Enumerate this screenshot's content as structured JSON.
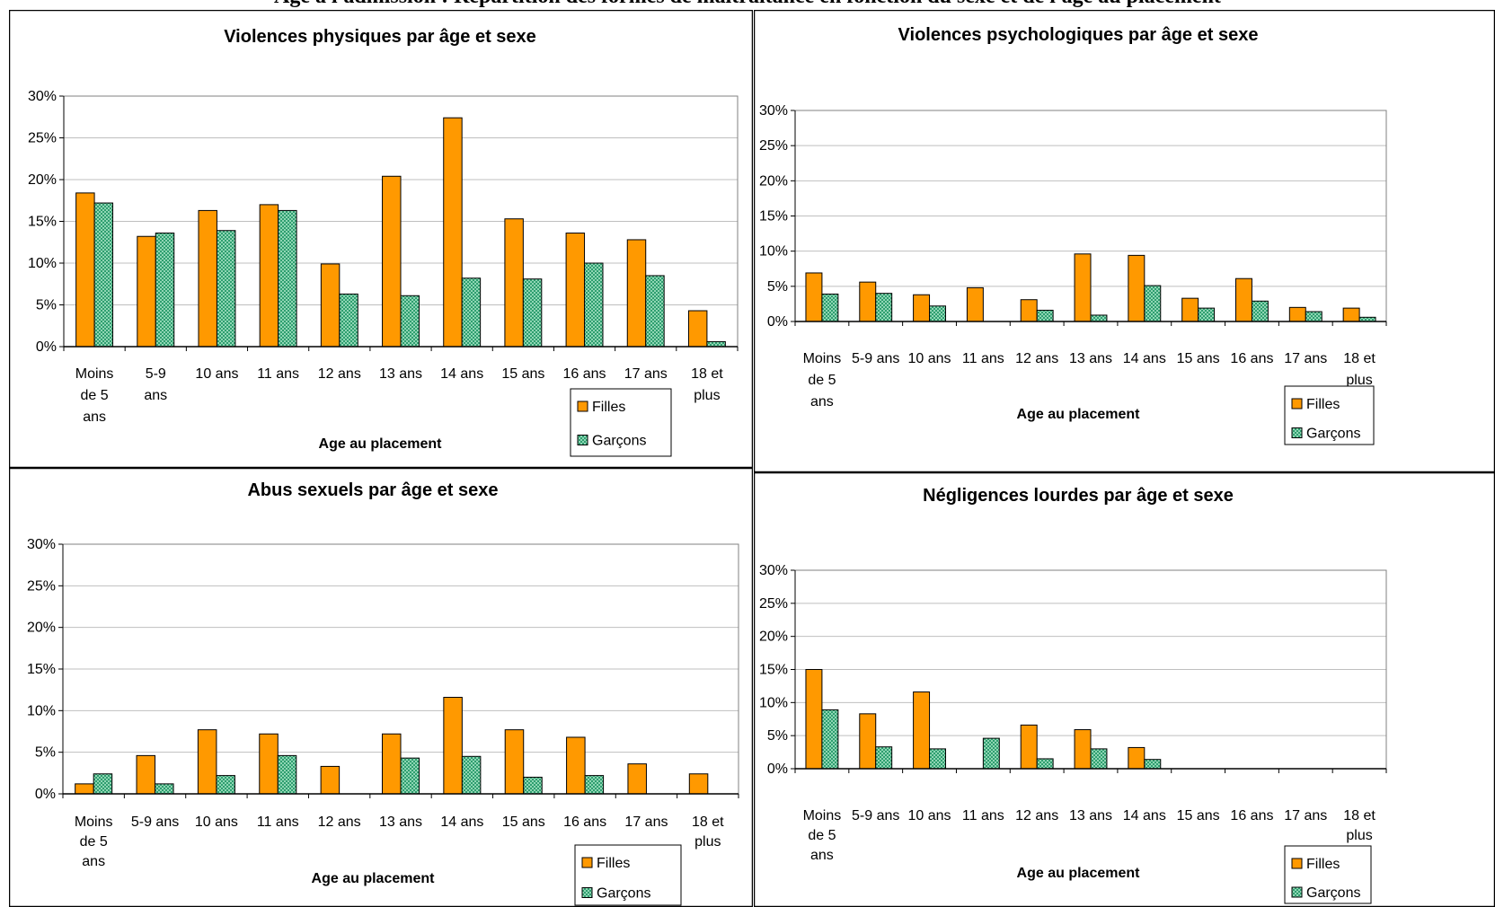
{
  "header": "Age à l'admission : Répartition des formes de maltraitance en fonction du sexe et de l'âge au placement",
  "colors": {
    "filles": "#FF9900",
    "garcons": "#2E9E6F",
    "garcons_fill": "#8FD6B4"
  },
  "chart_data": [
    {
      "type": "bar",
      "title": "Violences physiques par âge et sexe",
      "xlabel": "Age au placement",
      "ylabel": "",
      "ylim": [
        0,
        30
      ],
      "yticks": [
        "0%",
        "5%",
        "10%",
        "15%",
        "20%",
        "25%",
        "30%"
      ],
      "categories": [
        [
          "Moins",
          "de 5",
          "ans"
        ],
        [
          "5-9",
          "ans"
        ],
        [
          "10 ans"
        ],
        [
          "11 ans"
        ],
        [
          "12 ans"
        ],
        [
          "13 ans"
        ],
        [
          "14 ans"
        ],
        [
          "15 ans"
        ],
        [
          "16 ans"
        ],
        [
          "17 ans"
        ],
        [
          "18 et",
          "plus"
        ]
      ],
      "series": [
        {
          "name": "Filles",
          "values": [
            18.4,
            13.2,
            16.3,
            17.0,
            9.9,
            20.4,
            27.4,
            15.3,
            13.6,
            12.8,
            4.3
          ]
        },
        {
          "name": "Garçons",
          "values": [
            17.2,
            13.6,
            13.9,
            16.3,
            6.3,
            6.1,
            8.2,
            8.1,
            10.0,
            8.5,
            0.6
          ]
        }
      ],
      "legend": "bottom-right",
      "grid": true
    },
    {
      "type": "bar",
      "title": "Violences psychologiques par âge et sexe",
      "xlabel": "Age au placement",
      "ylabel": "",
      "ylim": [
        0,
        30
      ],
      "yticks": [
        "0%",
        "5%",
        "10%",
        "15%",
        "20%",
        "25%",
        "30%"
      ],
      "categories": [
        [
          "Moins",
          "de 5",
          "ans"
        ],
        [
          "5-9 ans"
        ],
        [
          "10 ans"
        ],
        [
          "11 ans"
        ],
        [
          "12 ans"
        ],
        [
          "13 ans"
        ],
        [
          "14 ans"
        ],
        [
          "15 ans"
        ],
        [
          "16 ans"
        ],
        [
          "17 ans"
        ],
        [
          "18 et",
          "plus"
        ]
      ],
      "series": [
        {
          "name": "Filles",
          "values": [
            6.9,
            5.6,
            3.8,
            4.8,
            3.1,
            9.6,
            9.4,
            3.3,
            6.1,
            2.0,
            1.9
          ]
        },
        {
          "name": "Garçons",
          "values": [
            3.9,
            4.0,
            2.2,
            0,
            1.6,
            0.9,
            5.1,
            1.9,
            2.9,
            1.4,
            0.6
          ]
        }
      ],
      "legend": "bottom-right",
      "grid": true
    },
    {
      "type": "bar",
      "title": "Abus sexuels par âge et sexe",
      "xlabel": "Age au placement",
      "ylabel": "",
      "ylim": [
        0,
        30
      ],
      "yticks": [
        "0%",
        "5%",
        "10%",
        "15%",
        "20%",
        "25%",
        "30%"
      ],
      "categories": [
        [
          "Moins",
          "de 5",
          "ans"
        ],
        [
          "5-9 ans"
        ],
        [
          "10 ans"
        ],
        [
          "11 ans"
        ],
        [
          "12 ans"
        ],
        [
          "13 ans"
        ],
        [
          "14 ans"
        ],
        [
          "15 ans"
        ],
        [
          "16 ans"
        ],
        [
          "17 ans"
        ],
        [
          "18 et",
          "plus"
        ]
      ],
      "series": [
        {
          "name": "Filles",
          "values": [
            1.2,
            4.6,
            7.7,
            7.2,
            3.3,
            7.2,
            11.6,
            7.7,
            6.8,
            3.6,
            2.4
          ]
        },
        {
          "name": "Garçons",
          "values": [
            2.4,
            1.2,
            2.2,
            4.6,
            0,
            4.3,
            4.5,
            2.0,
            2.2,
            0,
            0
          ]
        }
      ],
      "legend": "bottom-right",
      "grid": true
    },
    {
      "type": "bar",
      "title": "Négligences lourdes par âge et sexe",
      "xlabel": "Age au placement",
      "ylabel": "",
      "ylim": [
        0,
        30
      ],
      "yticks": [
        "0%",
        "5%",
        "10%",
        "15%",
        "20%",
        "25%",
        "30%"
      ],
      "categories": [
        [
          "Moins",
          "de 5",
          "ans"
        ],
        [
          "5-9 ans"
        ],
        [
          "10 ans"
        ],
        [
          "11 ans"
        ],
        [
          "12 ans"
        ],
        [
          "13 ans"
        ],
        [
          "14 ans"
        ],
        [
          "15 ans"
        ],
        [
          "16 ans"
        ],
        [
          "17 ans"
        ],
        [
          "18 et",
          "plus"
        ]
      ],
      "series": [
        {
          "name": "Filles",
          "values": [
            15.0,
            8.3,
            11.6,
            0,
            6.6,
            5.9,
            3.2,
            0,
            0,
            0,
            0
          ]
        },
        {
          "name": "Garçons",
          "values": [
            8.9,
            3.3,
            3.0,
            4.6,
            1.5,
            3.0,
            1.4,
            0,
            0,
            0,
            0
          ]
        }
      ],
      "legend": "bottom-right",
      "grid": true
    }
  ]
}
